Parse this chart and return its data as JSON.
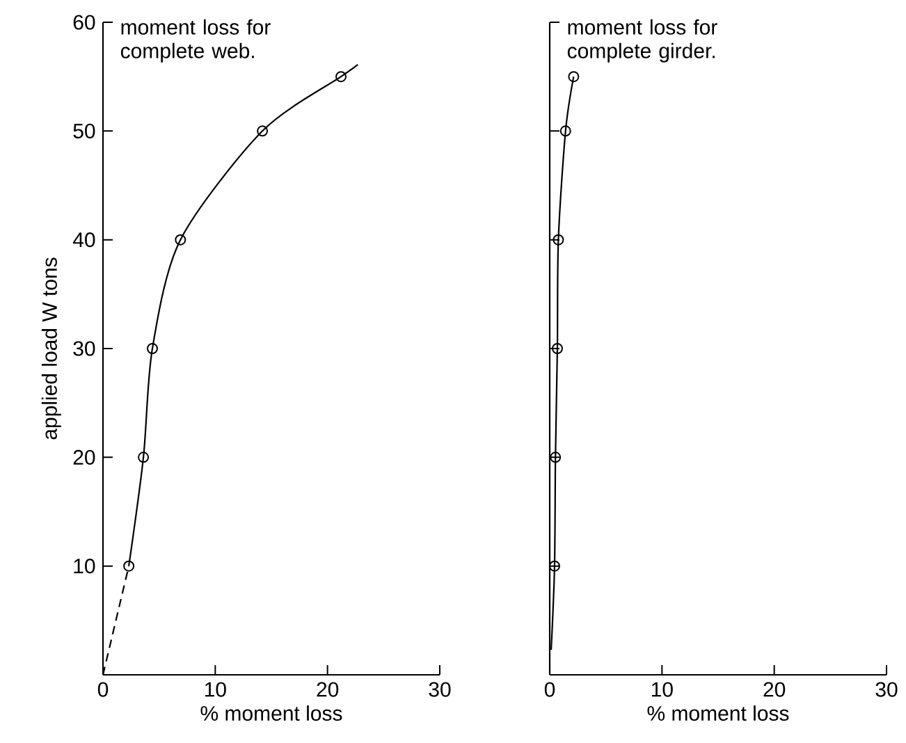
{
  "chart_data": [
    {
      "type": "line",
      "ylabel": "applied load W tons",
      "xlabel": "% moment loss",
      "annotations": [
        "moment loss for complete web."
      ],
      "xlim": [
        0,
        30
      ],
      "ylim": [
        0,
        60
      ],
      "xticks": [
        0,
        10,
        20,
        30
      ],
      "yticks": [
        10,
        20,
        30,
        40,
        50,
        60
      ],
      "series": [
        {
          "color": "#000000",
          "line_style": "solid",
          "marker": "none",
          "x": [
            2.3,
            3.6,
            4.4,
            6.9,
            14.2,
            21.2,
            22.7
          ],
          "values": [
            10,
            20,
            30,
            40,
            50,
            55,
            56.1
          ]
        },
        {
          "color": "#000000",
          "line_style": "dashed",
          "marker": "none",
          "x": [
            0,
            2.3
          ],
          "values": [
            0,
            10
          ]
        },
        {
          "type": "scatter",
          "color": "#000000",
          "marker": "circle",
          "x": [
            2.3,
            3.6,
            4.4,
            6.9,
            14.2,
            21.2
          ],
          "values": [
            10,
            20,
            30,
            40,
            50,
            55
          ]
        }
      ]
    },
    {
      "type": "line",
      "xlabel": "% moment loss",
      "annotations": [
        "moment loss for complete girder."
      ],
      "tick_labels": "x",
      "xlim": [
        0,
        30
      ],
      "ylim": [
        0,
        60
      ],
      "xticks": [
        0,
        10,
        20,
        30
      ],
      "yticks": [
        10,
        20,
        30,
        40,
        50,
        60
      ],
      "series": [
        {
          "color": "#000000",
          "line_style": "solid",
          "marker": "none",
          "x": [
            0.13,
            0.43,
            0.51,
            0.68,
            0.77,
            1.41,
            2.13
          ],
          "values": [
            2.3,
            10,
            20,
            30,
            40,
            50,
            55
          ]
        },
        {
          "type": "scatter",
          "color": "#000000",
          "marker": "circle",
          "x": [
            0.43,
            0.51,
            0.68,
            0.77,
            1.41,
            2.13
          ],
          "values": [
            10,
            20,
            30,
            40,
            50,
            55
          ]
        }
      ]
    }
  ]
}
